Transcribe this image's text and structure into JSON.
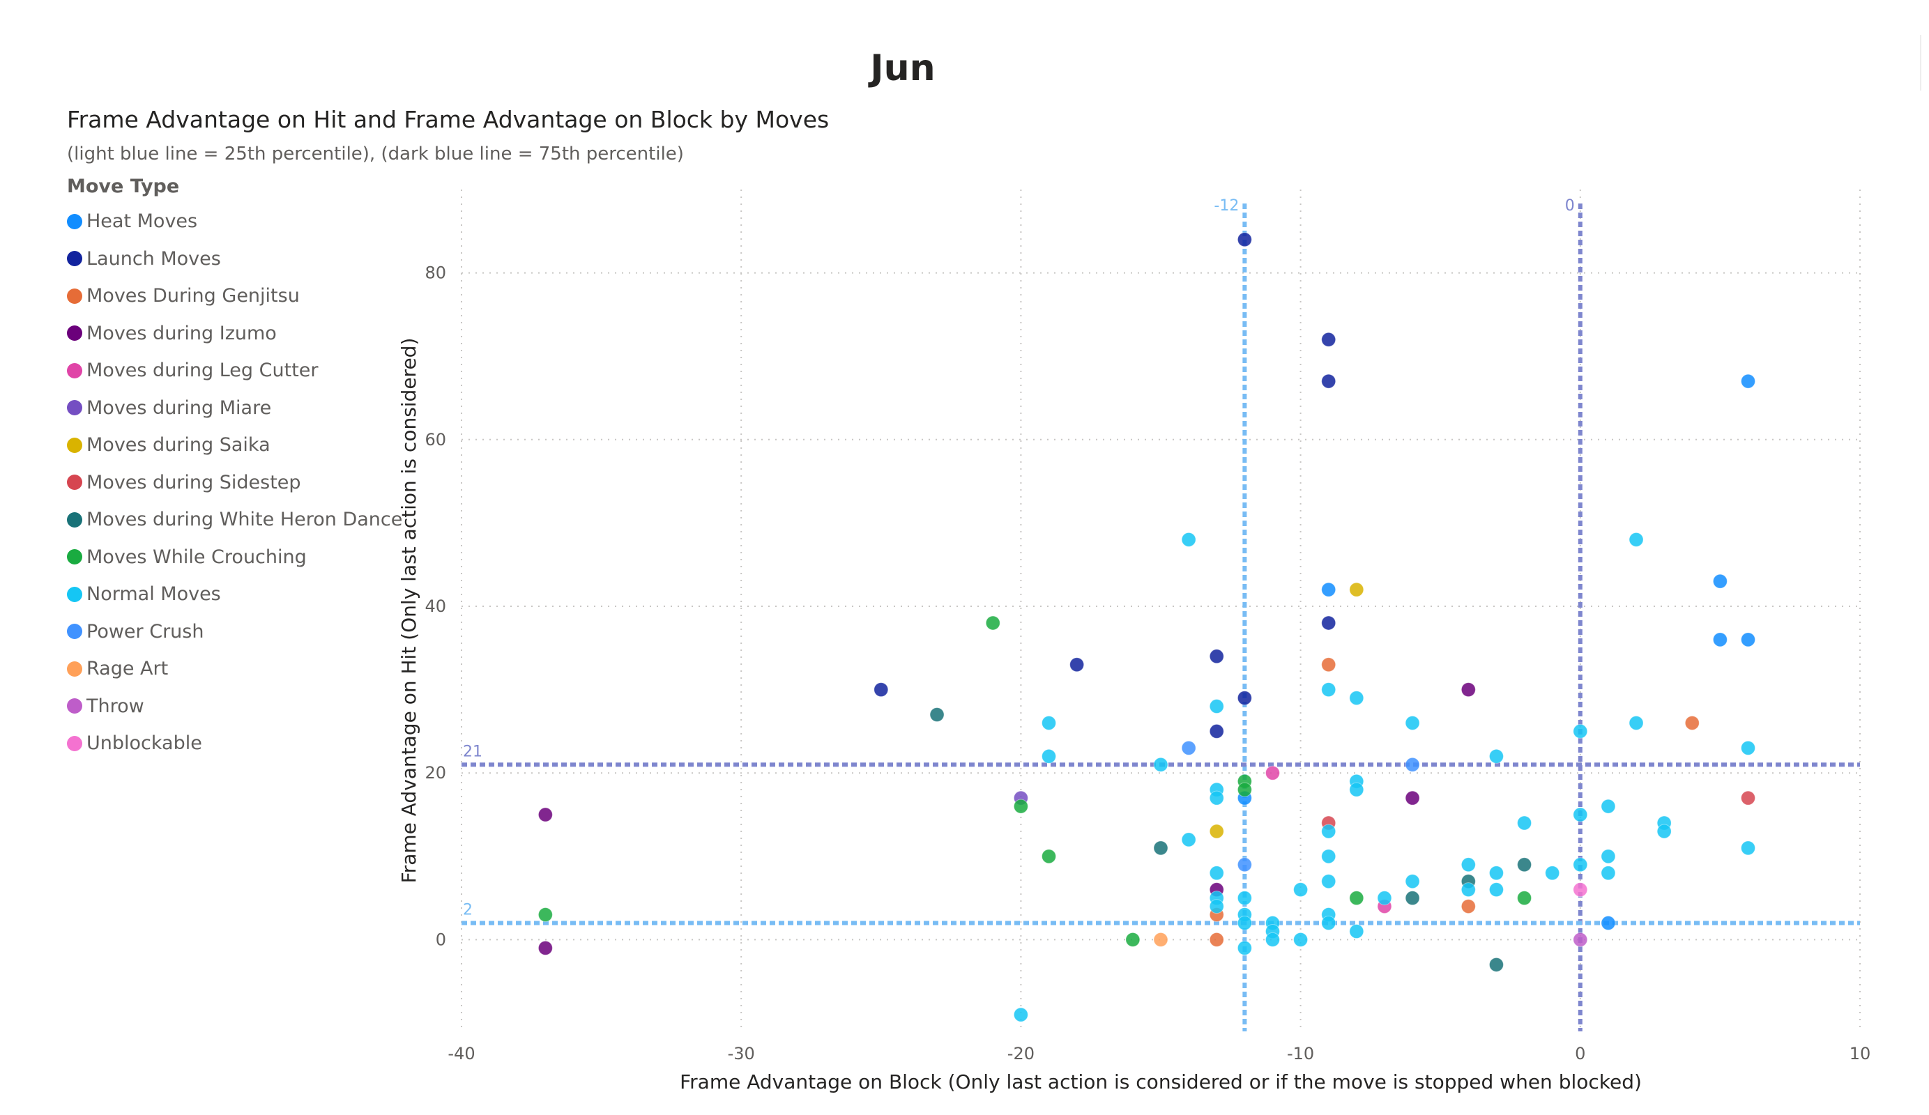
{
  "page": {
    "title": "Jun"
  },
  "chart_data": {
    "type": "scatter",
    "title": "Frame Advantage on Hit and Frame Advantage on Block by Moves",
    "subtitle": "(light blue line = 25th percentile), (dark blue line = 75th percentile)",
    "xlabel": "Frame Advantage on Block (Only last action is considered or if the move is stopped when blocked)",
    "ylabel": "Frame Advantage on Hit (Only last action is considered)",
    "xlim": [
      -40,
      10
    ],
    "ylim": [
      -11,
      90
    ],
    "xticks": [
      -40,
      -30,
      -20,
      -10,
      0,
      10
    ],
    "yticks": [
      0,
      20,
      40,
      60,
      80
    ],
    "grid": true,
    "legend": {
      "title": "Move Type",
      "placement": "left"
    },
    "reference_lines": [
      {
        "axis": "x",
        "value": -12,
        "label": "-12",
        "color": "#78BCF4"
      },
      {
        "axis": "x",
        "value": 0,
        "label": "0",
        "color": "#7E86CE"
      },
      {
        "axis": "y",
        "value": 21,
        "label": "21",
        "color": "#7E86CE"
      },
      {
        "axis": "y",
        "value": 2,
        "label": "2",
        "color": "#78BCF4"
      }
    ],
    "series": [
      {
        "name": "Heat Moves",
        "color": "#118DFF",
        "points": [
          [
            -9,
            42
          ],
          [
            5,
            43
          ],
          [
            5,
            36
          ],
          [
            6,
            36
          ],
          [
            6,
            67
          ],
          [
            -12,
            17
          ],
          [
            1,
            2
          ]
        ]
      },
      {
        "name": "Launch Moves",
        "color": "#12239E",
        "points": [
          [
            -12,
            84
          ],
          [
            -9,
            72
          ],
          [
            -9,
            67
          ],
          [
            -9,
            38
          ],
          [
            -13,
            34
          ],
          [
            -18,
            33
          ],
          [
            -25,
            30
          ],
          [
            -12,
            29
          ],
          [
            -13,
            25
          ]
        ]
      },
      {
        "name": "Moves During Genjitsu",
        "color": "#E66C37",
        "points": [
          [
            -9,
            33
          ],
          [
            4,
            26
          ],
          [
            -13,
            3
          ],
          [
            -13,
            0
          ],
          [
            -4,
            4
          ]
        ]
      },
      {
        "name": "Moves during Izumo",
        "color": "#6B007B",
        "points": [
          [
            -37,
            15
          ],
          [
            -37,
            -1
          ],
          [
            -4,
            30
          ],
          [
            -6,
            17
          ],
          [
            -13,
            6
          ]
        ]
      },
      {
        "name": "Moves during Leg Cutter",
        "color": "#E044A7",
        "points": [
          [
            -11,
            20
          ],
          [
            -7,
            4
          ]
        ]
      },
      {
        "name": "Moves during Miare",
        "color": "#744EC2",
        "points": [
          [
            -20,
            17
          ]
        ]
      },
      {
        "name": "Moves during Saika",
        "color": "#D9B300",
        "points": [
          [
            -8,
            42
          ],
          [
            -13,
            13
          ]
        ]
      },
      {
        "name": "Moves during Sidestep",
        "color": "#D64550",
        "points": [
          [
            -9,
            14
          ],
          [
            6,
            17
          ]
        ]
      },
      {
        "name": "Moves during White Heron Dance",
        "color": "#197278",
        "points": [
          [
            -23,
            27
          ],
          [
            -15,
            11
          ],
          [
            -2,
            9
          ],
          [
            -3,
            -3
          ],
          [
            -6,
            5
          ],
          [
            -4,
            7
          ]
        ]
      },
      {
        "name": "Moves While Crouching",
        "color": "#1AAB40",
        "points": [
          [
            -21,
            38
          ],
          [
            -20,
            16
          ],
          [
            -19,
            10
          ],
          [
            -37,
            3
          ],
          [
            -16,
            0
          ],
          [
            -12,
            19
          ],
          [
            -12,
            18
          ],
          [
            -8,
            5
          ],
          [
            -2,
            5
          ]
        ]
      },
      {
        "name": "Normal Moves",
        "color": "#15C6F4",
        "points": [
          [
            -14,
            48
          ],
          [
            2,
            48
          ],
          [
            -19,
            26
          ],
          [
            -13,
            28
          ],
          [
            -9,
            30
          ],
          [
            -8,
            29
          ],
          [
            -6,
            26
          ],
          [
            2,
            26
          ],
          [
            0,
            25
          ],
          [
            -19,
            22
          ],
          [
            -15,
            21
          ],
          [
            -3,
            22
          ],
          [
            6,
            23
          ],
          [
            -13,
            18
          ],
          [
            -13,
            17
          ],
          [
            -8,
            19
          ],
          [
            -8,
            18
          ],
          [
            -9,
            13
          ],
          [
            -2,
            14
          ],
          [
            0,
            15
          ],
          [
            1,
            16
          ],
          [
            3,
            14
          ],
          [
            3,
            13
          ],
          [
            6,
            11
          ],
          [
            -14,
            12
          ],
          [
            -9,
            10
          ],
          [
            1,
            10
          ],
          [
            -13,
            8
          ],
          [
            -9,
            7
          ],
          [
            -6,
            7
          ],
          [
            -4,
            9
          ],
          [
            -3,
            8
          ],
          [
            -1,
            8
          ],
          [
            1,
            8
          ],
          [
            0,
            9
          ],
          [
            -13,
            5
          ],
          [
            -12,
            5
          ],
          [
            -13,
            4
          ],
          [
            -10,
            6
          ],
          [
            -7,
            5
          ],
          [
            -4,
            6
          ],
          [
            -3,
            6
          ],
          [
            -12,
            3
          ],
          [
            -12,
            2
          ],
          [
            -11,
            2
          ],
          [
            -11,
            1
          ],
          [
            -9,
            3
          ],
          [
            -9,
            2
          ],
          [
            -8,
            1
          ],
          [
            -11,
            0
          ],
          [
            -10,
            0
          ],
          [
            -12,
            -1
          ],
          [
            -20,
            -9
          ]
        ]
      },
      {
        "name": "Power Crush",
        "color": "#4092FF",
        "points": [
          [
            -14,
            23
          ],
          [
            -6,
            21
          ],
          [
            -12,
            9
          ]
        ]
      },
      {
        "name": "Rage Art",
        "color": "#FFA058",
        "points": [
          [
            -15,
            0
          ]
        ]
      },
      {
        "name": "Throw",
        "color": "#BE5DC9",
        "points": [
          [
            0,
            0
          ]
        ]
      },
      {
        "name": "Unblockable",
        "color": "#F472D0",
        "points": [
          [
            0,
            6
          ]
        ]
      }
    ]
  }
}
